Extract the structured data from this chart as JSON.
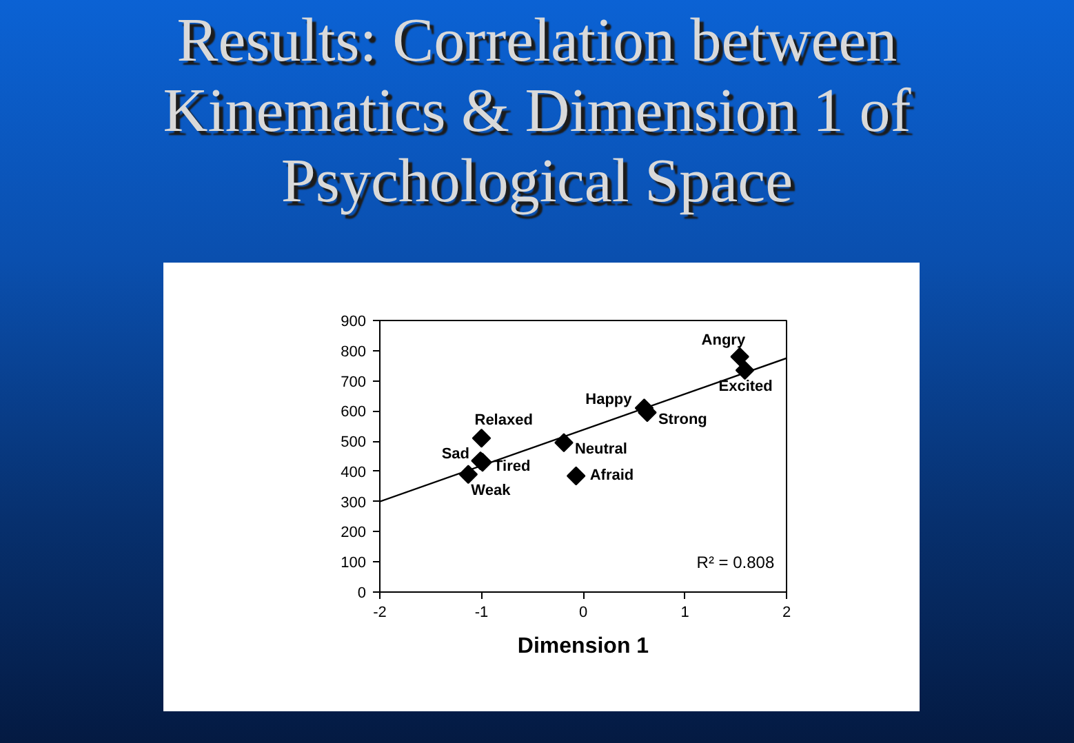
{
  "chart_data": {
    "type": "scatter",
    "title": "Results: Correlation between\nKinematics & Dimension 1 of\nPsychological Space",
    "xlabel": "Dimension 1",
    "xlim": [
      -2,
      2
    ],
    "xticks": [
      -2,
      -1,
      0,
      1,
      2
    ],
    "ylim": [
      0,
      900
    ],
    "yticks": [
      0,
      100,
      200,
      300,
      400,
      500,
      600,
      700,
      800,
      900
    ],
    "annotations": [
      "R² = 0.808"
    ],
    "series": [
      {
        "color": "#000000",
        "marker": "diamond",
        "x": [
          -1.13,
          -1.01,
          -0.99,
          -1.0,
          -0.19,
          -0.07,
          0.6,
          0.63,
          1.54,
          1.59
        ],
        "values": [
          390,
          435,
          430,
          510,
          495,
          385,
          610,
          595,
          780,
          735
        ],
        "value_labels": [
          "Weak",
          "Sad",
          "Tired",
          "Relaxed",
          "Neutral",
          "Afraid",
          "Happy",
          "Strong",
          "Angry",
          "Excited"
        ]
      },
      {
        "type": "line",
        "color": "#000000",
        "x": [
          -2,
          2
        ],
        "values": [
          300,
          775
        ]
      }
    ]
  }
}
